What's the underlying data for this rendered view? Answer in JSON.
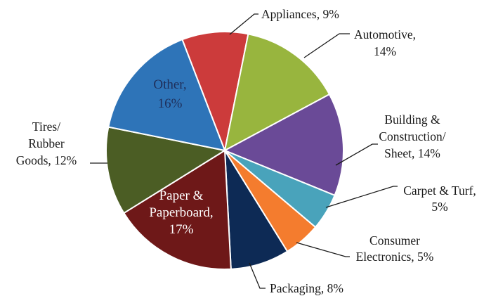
{
  "chart_data": {
    "type": "pie",
    "title": "",
    "legend": "none",
    "slices": [
      {
        "label": "Appliances",
        "value": 9,
        "pct_text": "9%",
        "color": "#cc3b3b"
      },
      {
        "label": "Automotive",
        "value": 14,
        "pct_text": "14%",
        "color": "#98b53e"
      },
      {
        "label": "Building & Construction/ Sheet",
        "value": 14,
        "pct_text": "14%",
        "color": "#6a4a97"
      },
      {
        "label": "Carpet & Turf",
        "value": 5,
        "pct_text": "5%",
        "color": "#49a3bb"
      },
      {
        "label": "Consumer Electronics",
        "value": 5,
        "pct_text": "5%",
        "color": "#f47c2e"
      },
      {
        "label": "Packaging",
        "value": 8,
        "pct_text": "8%",
        "color": "#0d2a55"
      },
      {
        "label": "Paper & Paperboard",
        "value": 17,
        "pct_text": "17%",
        "color": "#6e1818"
      },
      {
        "label": "Tires/ Rubber Goods",
        "value": 12,
        "pct_text": "12%",
        "color": "#4b5d24"
      },
      {
        "label": "Other",
        "value": 16,
        "pct_text": "16%",
        "color": "#2e74b8"
      }
    ]
  },
  "labels": {
    "appliances": [
      "Appliances, 9%"
    ],
    "automotive": [
      "Automotive,",
      "14%"
    ],
    "building": [
      "Building &",
      "Construction/",
      "Sheet, 14%"
    ],
    "carpet": [
      "Carpet & Turf,",
      "5%"
    ],
    "consumer": [
      "Consumer",
      "Electronics, 5%"
    ],
    "packaging": [
      "Packaging, 8%"
    ],
    "paper": [
      "Paper &",
      "Paperboard,",
      "17%"
    ],
    "tires": [
      "Tires/",
      "Rubber",
      "Goods, 12%"
    ],
    "other": [
      "Other,",
      "16%"
    ]
  }
}
